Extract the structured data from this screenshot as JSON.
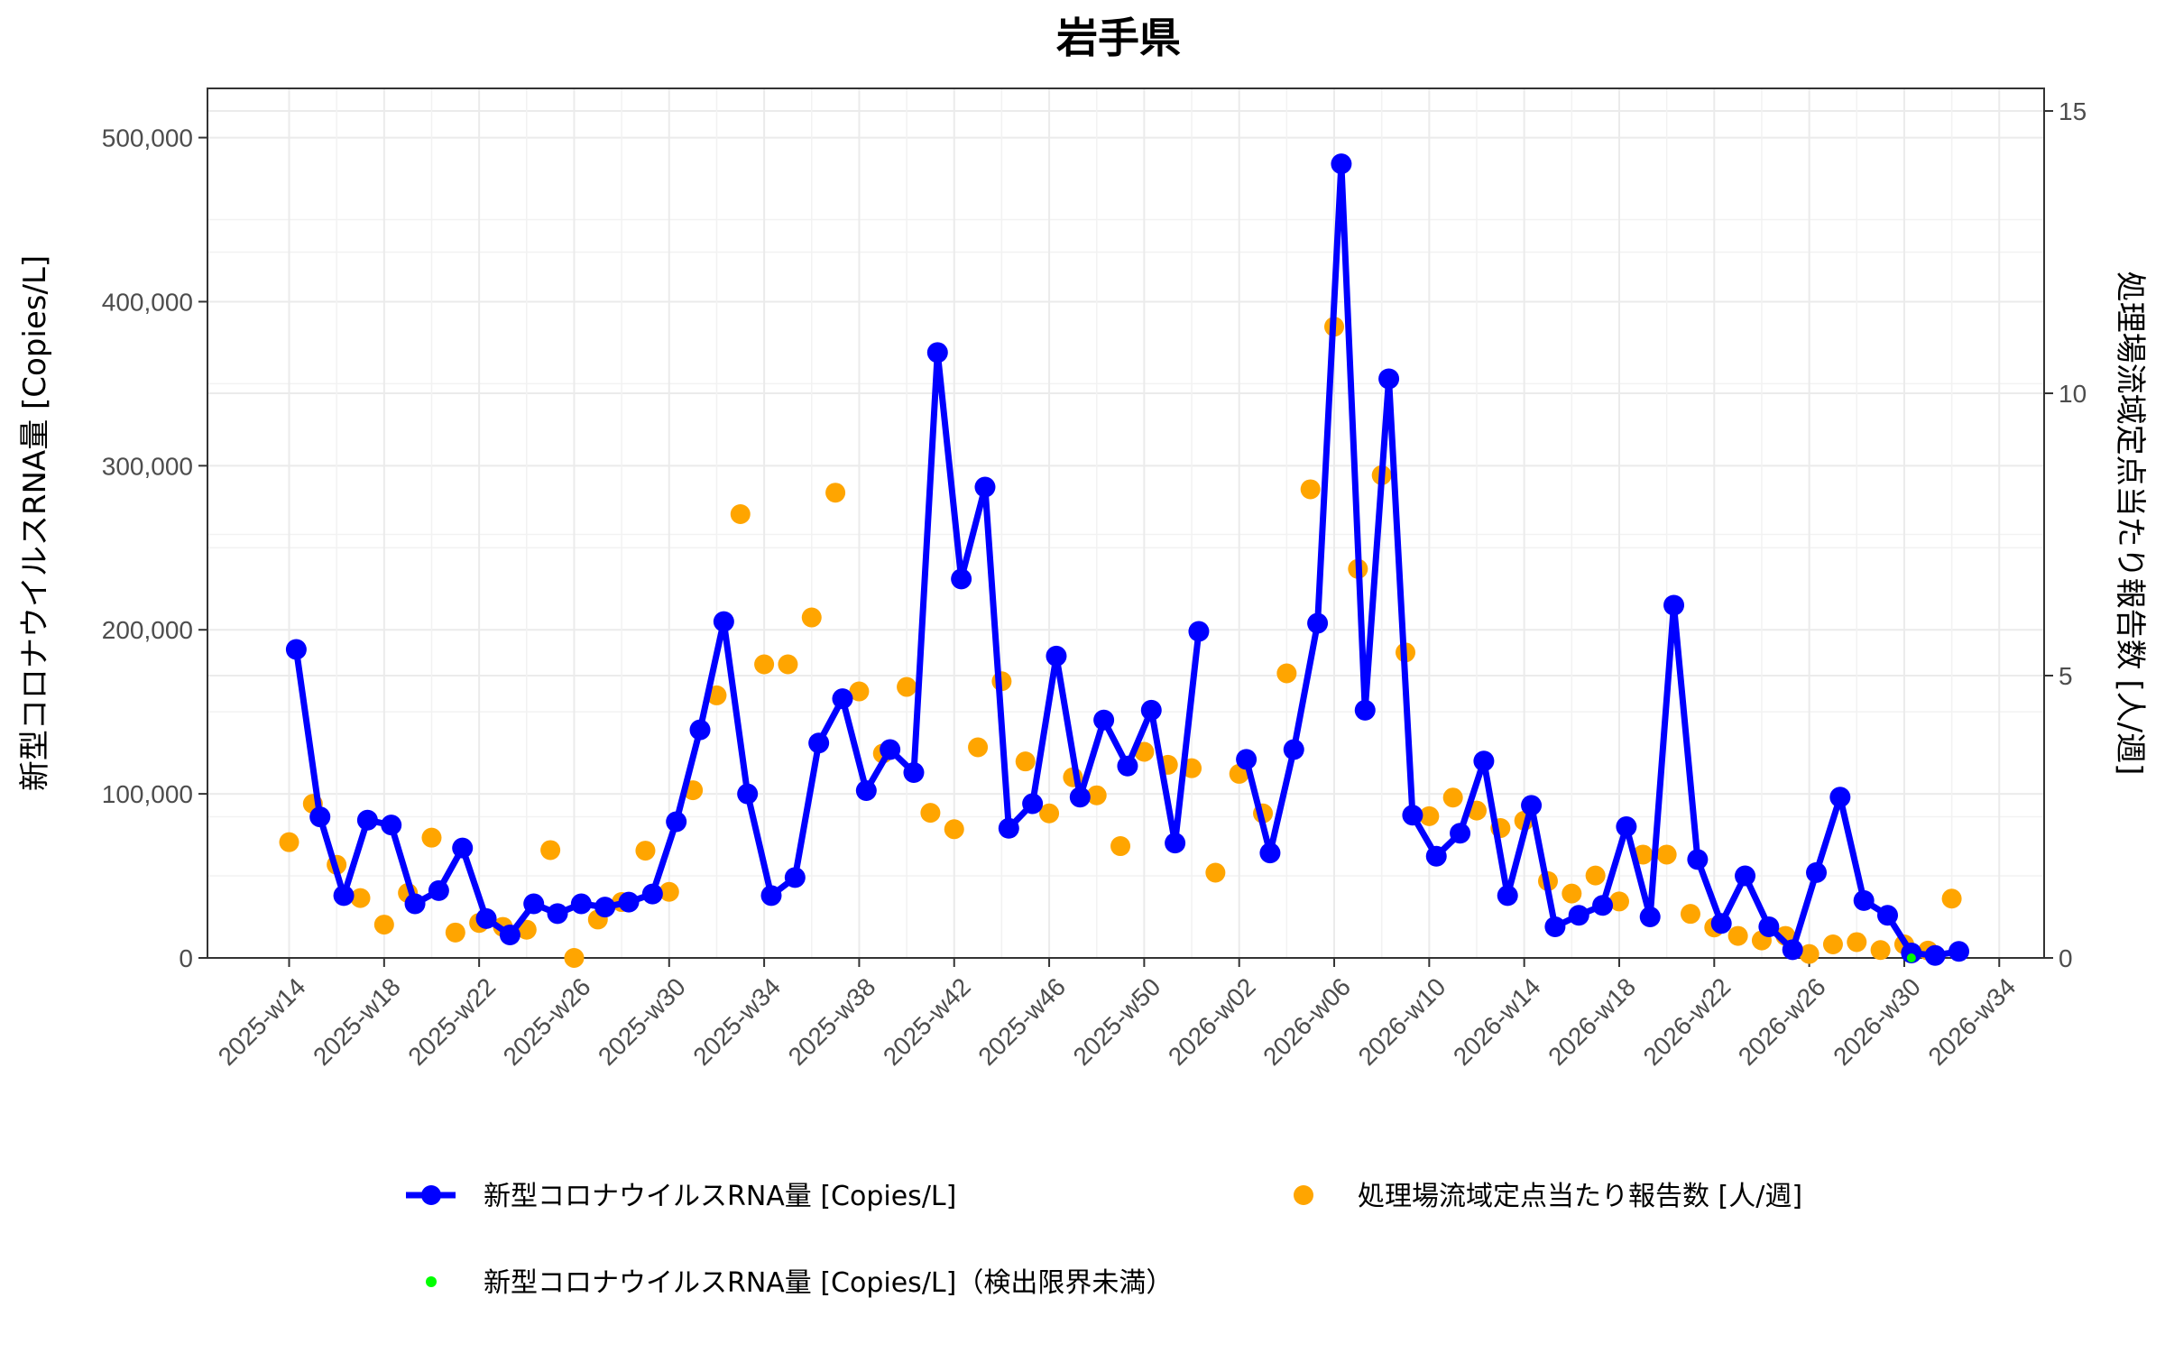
{
  "chart_data": {
    "type": "line",
    "title": "岩手県",
    "ylabel_left": "新型コロナウイルスRNA量 [Copies/L]",
    "ylabel_right": "処理場流域定点当たり報告数 [人/週]",
    "ylim_left": [
      0,
      530000
    ],
    "ylim_right": [
      0,
      15.4
    ],
    "yticks_left": [
      0,
      100000,
      200000,
      300000,
      400000,
      500000
    ],
    "yticks_left_labels": [
      "0",
      "100,000",
      "200,000",
      "300,000",
      "400,000",
      "500,000"
    ],
    "yticks_right": [
      0,
      5,
      10,
      15
    ],
    "yticks_right_labels": [
      "0",
      "5",
      "10",
      "15"
    ],
    "xticks": [
      "2025-w14",
      "2025-w18",
      "2025-w22",
      "2025-w26",
      "2025-w30",
      "2025-w34",
      "2025-w38",
      "2025-w42",
      "2025-w46",
      "2025-w50",
      "2026-w02",
      "2026-w06",
      "2026-w10",
      "2026-w14",
      "2026-w18",
      "2026-w22",
      "2026-w26",
      "2026-w30",
      "2026-w34"
    ],
    "grid": true,
    "legend_position": "bottom",
    "series": [
      {
        "name": "新型コロナウイルスRNA量 [Copies/L]",
        "axis": "left",
        "style": "line+points",
        "color": "#0000ff",
        "points": [
          [
            14.3,
            188000
          ],
          [
            15.3,
            86000
          ],
          [
            16.3,
            38000
          ],
          [
            17.3,
            84000
          ],
          [
            18.3,
            81000
          ],
          [
            19.3,
            33000
          ],
          [
            20.3,
            41000
          ],
          [
            21.3,
            67000
          ],
          [
            22.3,
            24000
          ],
          [
            23.3,
            14000
          ],
          [
            24.3,
            33000
          ],
          [
            25.3,
            27000
          ],
          [
            26.3,
            33000
          ],
          [
            27.3,
            31000
          ],
          [
            28.3,
            34000
          ],
          [
            29.3,
            39000
          ],
          [
            30.3,
            83000
          ],
          [
            31.3,
            139000
          ],
          [
            32.3,
            205000
          ],
          [
            33.3,
            100000
          ],
          [
            34.3,
            38000
          ],
          [
            35.3,
            49000
          ],
          [
            36.3,
            131000
          ],
          [
            37.3,
            158000
          ],
          [
            38.3,
            102000
          ],
          [
            39.3,
            127000
          ],
          [
            40.3,
            113000
          ],
          [
            41.3,
            369000
          ],
          [
            42.3,
            231000
          ],
          [
            43.3,
            287000
          ],
          [
            44.3,
            79000
          ],
          [
            45.3,
            94000
          ],
          [
            46.3,
            184000
          ],
          [
            47.3,
            98000
          ],
          [
            48.3,
            145000
          ],
          [
            49.3,
            117000
          ],
          [
            50.3,
            151000
          ],
          [
            51.3,
            70000
          ],
          [
            52.3,
            199000
          ],
          [
            54.3,
            121000
          ],
          [
            55.3,
            64000
          ],
          [
            56.3,
            127000
          ],
          [
            57.3,
            204000
          ],
          [
            58.3,
            484000
          ],
          [
            59.3,
            151000
          ],
          [
            60.3,
            353000
          ],
          [
            61.3,
            87000
          ],
          [
            62.3,
            62000
          ],
          [
            63.3,
            76000
          ],
          [
            64.3,
            120000
          ],
          [
            65.3,
            38000
          ],
          [
            66.3,
            93000
          ],
          [
            67.3,
            19000
          ],
          [
            68.3,
            26000
          ],
          [
            69.3,
            32000
          ],
          [
            70.3,
            80000
          ],
          [
            71.3,
            25000
          ],
          [
            72.3,
            215000
          ],
          [
            73.3,
            60000
          ],
          [
            74.3,
            21000
          ],
          [
            75.3,
            50000
          ],
          [
            76.3,
            19000
          ],
          [
            77.3,
            5000
          ],
          [
            78.3,
            52000
          ],
          [
            79.3,
            98000
          ],
          [
            80.3,
            35000
          ],
          [
            81.3,
            26000
          ],
          [
            82.3,
            3000
          ],
          [
            83.3,
            1500
          ],
          [
            84.3,
            4000
          ]
        ]
      },
      {
        "name": "処理場流域定点当たり報告数 [人/週]",
        "axis": "right",
        "style": "points",
        "color": "#ffa500",
        "points": [
          [
            14.0,
            2.05
          ],
          [
            15.0,
            2.73
          ],
          [
            16.0,
            1.65
          ],
          [
            17.0,
            1.06
          ],
          [
            18.0,
            0.59
          ],
          [
            19.0,
            1.15
          ],
          [
            20.0,
            2.13
          ],
          [
            21.0,
            0.45
          ],
          [
            22.0,
            0.62
          ],
          [
            23.0,
            0.55
          ],
          [
            24.0,
            0.5
          ],
          [
            25.0,
            1.91
          ],
          [
            26.0,
            0.0
          ],
          [
            27.0,
            0.68
          ],
          [
            28.0,
            0.99
          ],
          [
            29.0,
            1.9
          ],
          [
            30.0,
            1.17
          ],
          [
            31.0,
            2.97
          ],
          [
            32.0,
            4.65
          ],
          [
            33.0,
            7.86
          ],
          [
            34.0,
            5.2
          ],
          [
            35.0,
            5.2
          ],
          [
            36.0,
            6.03
          ],
          [
            37.0,
            8.24
          ],
          [
            38.0,
            4.72
          ],
          [
            39.0,
            3.62
          ],
          [
            40.0,
            4.8
          ],
          [
            41.0,
            2.57
          ],
          [
            42.0,
            2.28
          ],
          [
            43.0,
            3.73
          ],
          [
            44.0,
            4.9
          ],
          [
            45.0,
            3.48
          ],
          [
            46.0,
            2.56
          ],
          [
            47.0,
            3.2
          ],
          [
            48.0,
            2.88
          ],
          [
            49.0,
            1.98
          ],
          [
            50.0,
            3.65
          ],
          [
            51.0,
            3.42
          ],
          [
            52.0,
            3.36
          ],
          [
            53.0,
            1.51
          ],
          [
            54.0,
            3.26
          ],
          [
            55.0,
            2.56
          ],
          [
            56.0,
            5.04
          ],
          [
            57.0,
            8.3
          ],
          [
            58.0,
            11.18
          ],
          [
            59.0,
            6.89
          ],
          [
            60.0,
            8.55
          ],
          [
            61.0,
            5.41
          ],
          [
            62.0,
            2.51
          ],
          [
            63.0,
            2.84
          ],
          [
            64.0,
            2.61
          ],
          [
            65.0,
            2.3
          ],
          [
            66.0,
            2.43
          ],
          [
            67.0,
            1.36
          ],
          [
            68.0,
            1.14
          ],
          [
            69.0,
            1.46
          ],
          [
            70.0,
            1.0
          ],
          [
            71.0,
            1.83
          ],
          [
            72.0,
            1.83
          ],
          [
            73.0,
            0.78
          ],
          [
            74.0,
            0.54
          ],
          [
            75.0,
            0.39
          ],
          [
            76.0,
            0.31
          ],
          [
            77.0,
            0.39
          ],
          [
            78.0,
            0.07
          ],
          [
            79.0,
            0.24
          ],
          [
            80.0,
            0.28
          ],
          [
            81.0,
            0.14
          ],
          [
            82.0,
            0.24
          ],
          [
            83.0,
            0.13
          ],
          [
            84.0,
            1.05
          ]
        ]
      },
      {
        "name": "新型コロナウイルスRNA量 [Copies/L]（検出限界未満）",
        "axis": "left",
        "style": "small-points",
        "color": "#00ff00",
        "points": [
          [
            82.3,
            0
          ]
        ]
      }
    ]
  }
}
